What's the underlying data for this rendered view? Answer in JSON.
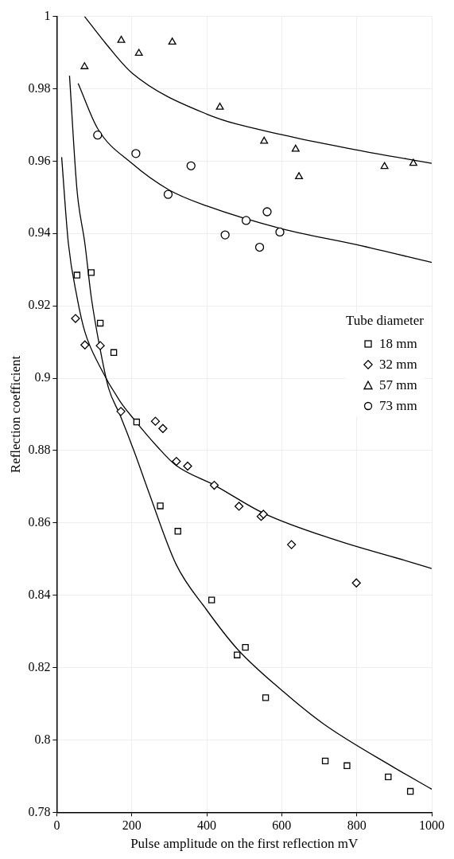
{
  "chart_data": {
    "type": "scatter",
    "xlabel": "Pulse amplitude on the first reflection mV",
    "ylabel": "Reflection coefficient",
    "legend_title": "Tube diameter",
    "xlim": [
      0,
      1000
    ],
    "xticks": [
      0,
      200,
      400,
      600,
      800,
      1000
    ],
    "ylim": [
      0.78,
      1
    ],
    "yticks": [
      0.78,
      0.8,
      0.82,
      0.84,
      0.86,
      0.88,
      0.9,
      0.92,
      0.94,
      0.96,
      0.98,
      1
    ],
    "grid": true,
    "legend": "right",
    "series": [
      {
        "name": "18 mm",
        "color": "#000000",
        "marker": "square",
        "x": [
          54,
          92,
          116,
          152,
          213,
          276,
          323,
          413,
          481,
          503,
          557,
          716,
          774,
          884,
          943
        ],
        "values": [
          0.9285,
          0.9292,
          0.9152,
          0.9071,
          0.8879,
          0.8647,
          0.8577,
          0.8387,
          0.8235,
          0.8256,
          0.8117,
          0.7942,
          0.7929,
          0.7898,
          0.7858
        ]
      },
      {
        "name": "32 mm",
        "color": "#000000",
        "marker": "diamond",
        "x": [
          50,
          75,
          116,
          171,
          263,
          283,
          319,
          349,
          420,
          486,
          545,
          551,
          626,
          799
        ],
        "values": [
          0.9165,
          0.9092,
          0.909,
          0.8908,
          0.8881,
          0.8861,
          0.877,
          0.8757,
          0.8704,
          0.8646,
          0.8618,
          0.8624,
          0.854,
          0.8434
        ]
      },
      {
        "name": "57 mm",
        "color": "#000000",
        "marker": "triangle",
        "x": [
          74,
          172,
          219,
          308,
          435,
          553,
          637,
          646,
          874,
          951
        ],
        "values": [
          0.9861,
          0.9934,
          0.9898,
          0.9929,
          0.9749,
          0.9655,
          0.9633,
          0.9557,
          0.9585,
          0.9594
        ]
      },
      {
        "name": "73 mm",
        "color": "#000000",
        "marker": "circle",
        "x": [
          109,
          211,
          297,
          358,
          449,
          505,
          541,
          561,
          595
        ],
        "values": [
          0.9672,
          0.9621,
          0.9508,
          0.9587,
          0.9396,
          0.9436,
          0.9362,
          0.946,
          0.9404
        ]
      },
      {
        "type": "line",
        "color": "#000000",
        "marker": "none",
        "x": [
          34,
          54,
          75,
          92,
          115,
          138,
          168,
          207,
          245,
          318,
          398,
          482,
          605,
          712,
          896,
          1000
        ],
        "values": [
          0.9836,
          0.952,
          0.9372,
          0.9224,
          0.9084,
          0.8973,
          0.89,
          0.8796,
          0.8686,
          0.8486,
          0.8362,
          0.8251,
          0.8133,
          0.8044,
          0.7926,
          0.7864
        ]
      },
      {
        "type": "line",
        "color": "#000000",
        "marker": "none",
        "x": [
          13,
          31,
          54,
          75,
          115,
          168,
          207,
          268,
          318,
          421,
          551,
          743,
          949,
          1000
        ],
        "values": [
          0.9611,
          0.9372,
          0.9224,
          0.9128,
          0.9032,
          0.8937,
          0.8885,
          0.8811,
          0.8759,
          0.8704,
          0.8627,
          0.8553,
          0.849,
          0.8474
        ]
      },
      {
        "type": "line",
        "color": "#000000",
        "marker": "none",
        "x": [
          74,
          130,
          200,
          400,
          600,
          800,
          1000
        ],
        "values": [
          1.0,
          0.9926,
          0.9844,
          0.973,
          0.9673,
          0.9631,
          0.9594
        ]
      },
      {
        "type": "line",
        "color": "#000000",
        "marker": "none",
        "x": [
          57,
          109,
          200,
          300,
          400,
          600,
          800,
          1000
        ],
        "values": [
          0.9815,
          0.969,
          0.9594,
          0.952,
          0.9476,
          0.9413,
          0.9369,
          0.932
        ]
      }
    ]
  }
}
